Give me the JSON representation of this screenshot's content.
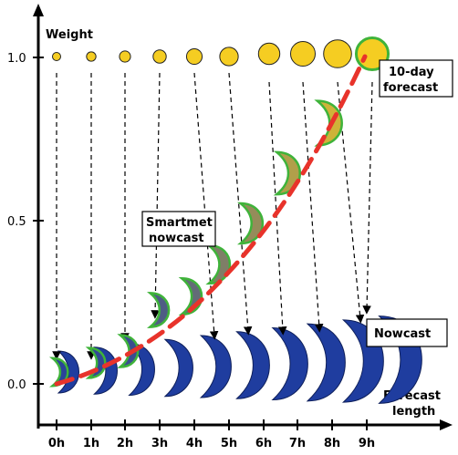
{
  "axes": {
    "y_label": "Weight",
    "x_label_line1": "Forecast",
    "x_label_line2": "length",
    "y_ticks": [
      {
        "value": 0.0,
        "label": "0.0"
      },
      {
        "value": 0.5,
        "label": "0.5"
      },
      {
        "value": 1.0,
        "label": "1.0"
      }
    ],
    "x_ticks": [
      "0h",
      "1h",
      "2h",
      "3h",
      "4h",
      "5h",
      "6h",
      "7h",
      "8h",
      "9h"
    ]
  },
  "labels": {
    "ten_day_line1": "10-day",
    "ten_day_line2": "forecast",
    "smartmet_line1": "Smartmet",
    "smartmet_line2": "nowcast",
    "nowcast": "Nowcast"
  },
  "series": {
    "forecast_circle_sizes": [
      1,
      1.15,
      1.35,
      1.6,
      1.9,
      2.25,
      2.6,
      3.0,
      3.4,
      3.9
    ],
    "blend_weights": [
      0.05,
      0.08,
      0.12,
      0.22,
      0.32,
      0.45,
      0.55,
      0.68,
      0.82,
      1.0
    ]
  },
  "colors": {
    "forecast_fill": "#f5cd22",
    "outline_green": "#3fb33a",
    "nowcast_blue": "#1f3d9f",
    "trend_red": "#e8332b"
  }
}
